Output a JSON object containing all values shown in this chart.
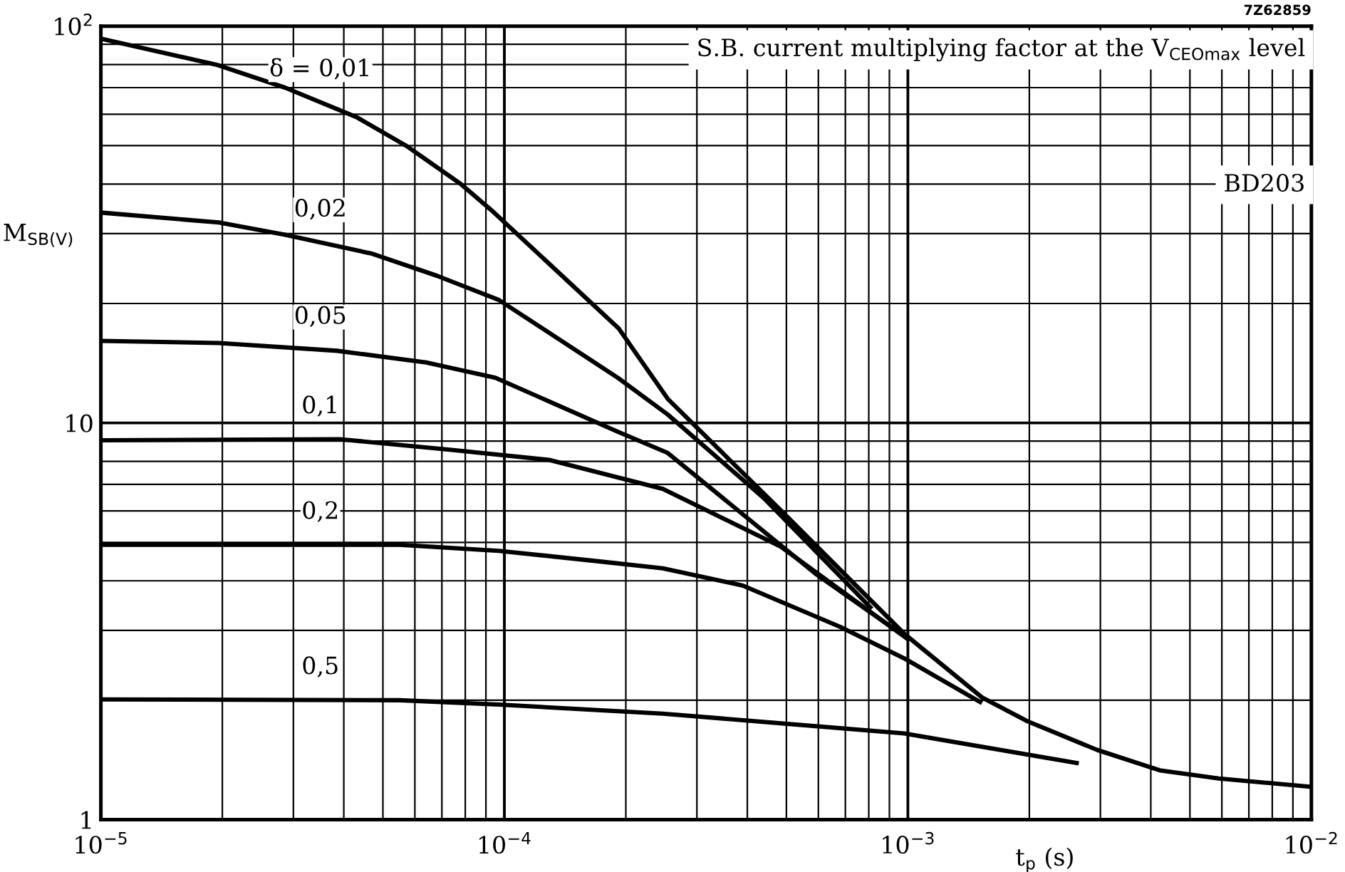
{
  "chart_data": {
    "type": "line",
    "title": "S.B. current multiplying factor at the V$_{CEOmax}$ level",
    "xlabel": "t$_{p}$ (s)",
    "ylabel": "M$_{SB(V)}$",
    "annotations": [
      "BD203",
      "7Z62859"
    ],
    "log": "xy",
    "grid": true,
    "legend": false,
    "marker": "none",
    "line_style": "solid",
    "xlim": [
      1e-05,
      0.01
    ],
    "ylim": [
      1,
      100
    ],
    "xticks": [
      {
        "value": 1e-05,
        "label": "10$^{−5}$"
      },
      {
        "value": 0.0001,
        "label": "10$^{−4}$"
      },
      {
        "value": 0.001,
        "label": "10$^{−3}$"
      },
      {
        "value": 0.01,
        "label": "10$^{−2}$"
      }
    ],
    "yticks": [
      1,
      10,
      {
        "value": 100,
        "label": "10$^{2}$"
      }
    ],
    "series": [
      {
        "name": "δ = 0,01",
        "color": "#000000",
        "x": [
          1e-05,
          1.93e-05,
          2.86e-05,
          4.3e-05,
          5.7e-05,
          7.8e-05,
          9.4e-05,
          0.000192,
          0.000254,
          0.000486,
          0.00098,
          0.00153,
          0.00198,
          0.00294,
          0.00423,
          0.0059,
          0.01
        ],
        "values": [
          93,
          80,
          70,
          59,
          50,
          40,
          34,
          17.3,
          11.5,
          6.0,
          2.94,
          2.03,
          1.77,
          1.5,
          1.33,
          1.27,
          1.21
        ]
      },
      {
        "name": "0,02",
        "color": "#000000",
        "x": [
          1e-05,
          1.96e-05,
          2.86e-05,
          4.7e-05,
          6.8e-05,
          9.7e-05,
          0.000191,
          0.000254,
          0.00044,
          0.000807
        ],
        "values": [
          33.9,
          32,
          29.8,
          26.7,
          23.5,
          20.4,
          13.0,
          10.5,
          6.46,
          3.43
        ]
      },
      {
        "name": "0,05",
        "color": "#000000",
        "x": [
          1e-05,
          1.96e-05,
          3.85e-05,
          6.4e-05,
          9.5e-05,
          0.000191,
          0.000254,
          0.00059,
          0.00098
        ],
        "values": [
          16.1,
          15.9,
          15.2,
          14.2,
          13.0,
          9.5,
          8.4,
          4.17,
          2.9
        ]
      },
      {
        "name": "0,1",
        "color": "#000000",
        "x": [
          1e-05,
          3.9e-05,
          7.4e-05,
          0.000129,
          0.000247,
          0.000484,
          0.001
        ],
        "values": [
          9.04,
          9.1,
          8.55,
          8.07,
          6.82,
          4.88,
          2.85
        ]
      },
      {
        "name": "0,2",
        "color": "#000000",
        "x": [
          1e-05,
          5.5e-05,
          9.7e-05,
          0.000171,
          0.000247,
          0.00039,
          0.00068,
          0.00098,
          0.00151
        ],
        "values": [
          4.93,
          4.93,
          4.76,
          4.48,
          4.3,
          3.89,
          3.06,
          2.55,
          1.98
        ]
      },
      {
        "name": "0,5",
        "color": "#000000",
        "x": [
          1e-05,
          5.5e-05,
          9.7e-05,
          0.000247,
          0.00098,
          0.00262
        ],
        "values": [
          2.01,
          2.0,
          1.95,
          1.85,
          1.65,
          1.39
        ]
      }
    ]
  }
}
